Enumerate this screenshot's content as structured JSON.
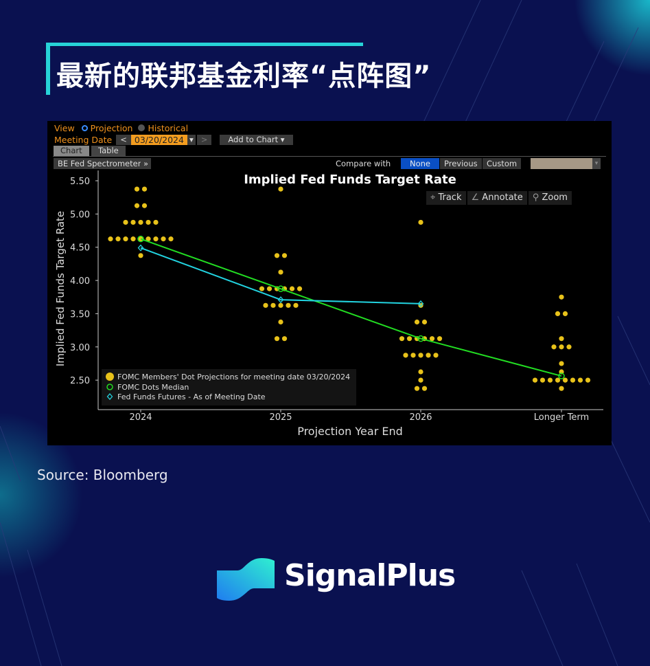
{
  "slide": {
    "title": "最新的联邦基金利率“点阵图”",
    "source": "Source: Bloomberg",
    "brand": "SignalPlus",
    "accent": "#27d3d8",
    "background": "#0a1150"
  },
  "terminal": {
    "view_label": "View",
    "view_options": [
      {
        "label": "Projection",
        "selected": true
      },
      {
        "label": "Historical",
        "selected": false
      }
    ],
    "meeting_date_label": "Meeting Date",
    "meeting_date": "03/20/2024",
    "prev": "<",
    "next": ">",
    "dropdown": "▾",
    "add_to_chart": "Add to Chart ▾",
    "tabs": [
      {
        "label": "Chart",
        "active": true
      },
      {
        "label": "Table",
        "active": false
      }
    ],
    "spectrometer": "BE Fed Spectrometer",
    "expand": "»",
    "compare_label": "Compare with",
    "compare_options": [
      {
        "label": "None",
        "active": true
      },
      {
        "label": "Previous",
        "active": false
      },
      {
        "label": "Custom",
        "active": false
      }
    ],
    "tools": [
      {
        "label": "Track",
        "icon": "crosshair-icon",
        "glyph": "⌖"
      },
      {
        "label": "Annotate",
        "icon": "pencil-icon",
        "glyph": "∠"
      },
      {
        "label": "Zoom",
        "icon": "magnifier-icon",
        "glyph": "⚲"
      }
    ]
  },
  "chart_data": {
    "type": "scatter",
    "title": "Implied Fed Funds Target Rate",
    "xlabel": "Projection Year End",
    "ylabel": "Implied Fed Funds Target Rate",
    "categories": [
      "2024",
      "2025",
      "2026",
      "Longer Term"
    ],
    "ylim": [
      2.25,
      5.6
    ],
    "yticks": [
      "2.50",
      "3.00",
      "3.50",
      "4.00",
      "4.50",
      "5.00",
      "5.50"
    ],
    "legend_position": "bottom-left",
    "series": [
      {
        "name": "FOMC Members' Dot Projections for meeting date 03/20/2024",
        "color": "#e8c21a",
        "dots": [
          [
            [
              5.375,
              2
            ],
            [
              5.125,
              2
            ],
            [
              4.875,
              5
            ],
            [
              4.625,
              9
            ],
            [
              4.375,
              1
            ]
          ],
          [
            [
              5.375,
              1
            ],
            [
              4.375,
              2
            ],
            [
              4.125,
              1
            ],
            [
              3.875,
              6
            ],
            [
              3.625,
              5
            ],
            [
              3.375,
              1
            ],
            [
              3.125,
              2
            ],
            [
              2.625,
              1
            ]
          ],
          [
            [
              4.875,
              1
            ],
            [
              3.625,
              1
            ],
            [
              3.375,
              2
            ],
            [
              3.125,
              6
            ],
            [
              2.875,
              5
            ],
            [
              2.625,
              1
            ],
            [
              2.5,
              1
            ],
            [
              2.375,
              2
            ]
          ],
          [
            [
              3.75,
              1
            ],
            [
              3.5,
              2
            ],
            [
              3.125,
              1
            ],
            [
              3.0,
              3
            ],
            [
              2.75,
              1
            ],
            [
              2.625,
              1
            ],
            [
              2.5,
              8
            ],
            [
              2.375,
              1
            ]
          ]
        ]
      },
      {
        "name": "FOMC Dots Median",
        "color": "#22dd22",
        "values": [
          4.625,
          3.875,
          3.125,
          2.5625
        ]
      },
      {
        "name": "Fed Funds Futures - As of Meeting Date",
        "color": "#22d3e0",
        "values": [
          4.49,
          3.71,
          3.65,
          null
        ]
      }
    ]
  }
}
